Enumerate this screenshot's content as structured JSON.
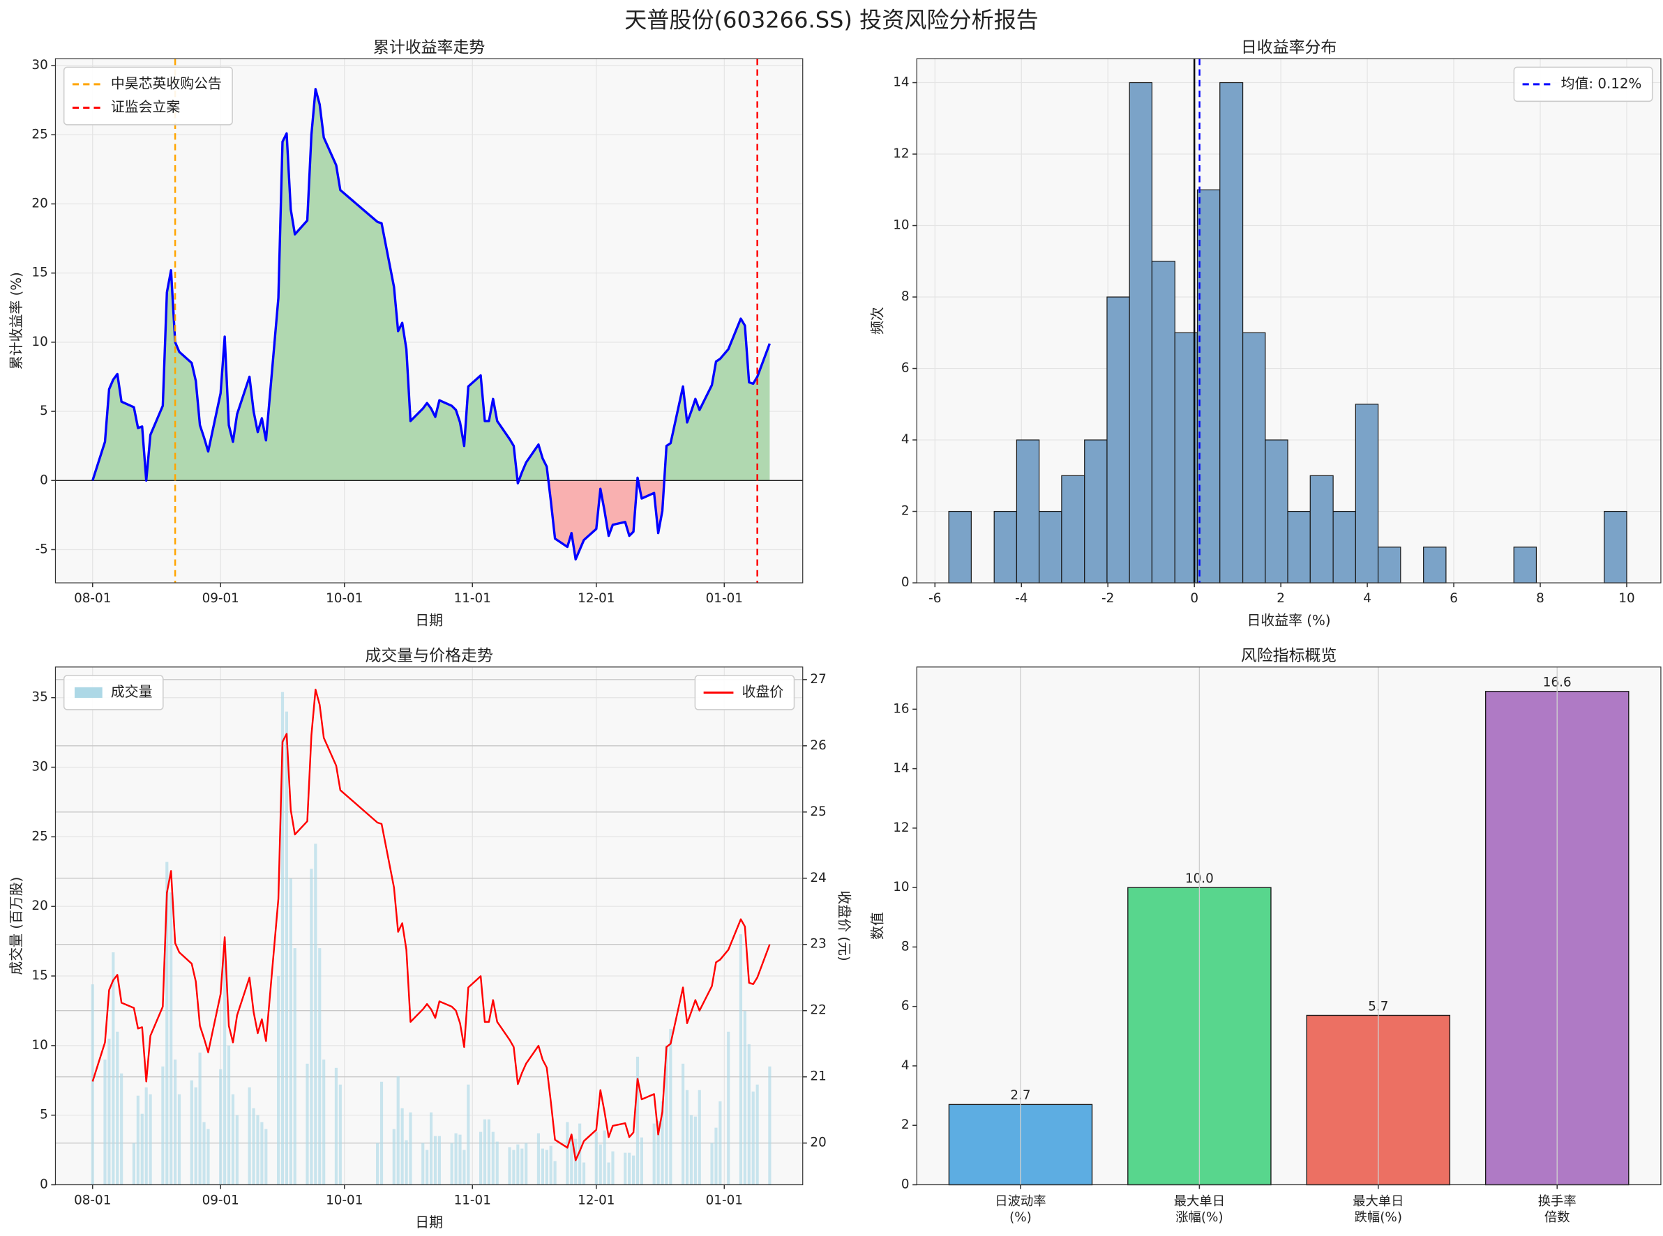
{
  "title": "天普股份(603266.SS) 投资风险分析报告",
  "chart_data": [
    {
      "type": "line",
      "title": "累计收益率走势",
      "xlabel": "日期",
      "ylabel": "累计收益率 (%)",
      "x": [
        "08-01",
        "08-04",
        "08-05",
        "08-06",
        "08-07",
        "08-08",
        "08-11",
        "08-12",
        "08-13",
        "08-14",
        "08-15",
        "08-18",
        "08-19",
        "08-20",
        "08-21",
        "08-22",
        "08-25",
        "08-26",
        "08-27",
        "08-28",
        "08-29",
        "09-01",
        "09-02",
        "09-03",
        "09-04",
        "09-05",
        "09-08",
        "09-09",
        "09-10",
        "09-11",
        "09-12",
        "09-15",
        "09-16",
        "09-17",
        "09-18",
        "09-19",
        "09-22",
        "09-23",
        "09-24",
        "09-25",
        "09-26",
        "09-29",
        "09-30",
        "10-09",
        "10-10",
        "10-13",
        "10-14",
        "10-15",
        "10-16",
        "10-17",
        "10-20",
        "10-21",
        "10-22",
        "10-23",
        "10-24",
        "10-27",
        "10-28",
        "10-29",
        "10-30",
        "10-31",
        "11-03",
        "11-04",
        "11-05",
        "11-06",
        "11-07",
        "11-10",
        "11-11",
        "11-12",
        "11-13",
        "11-14",
        "11-17",
        "11-18",
        "11-19",
        "11-20",
        "11-21",
        "11-24",
        "11-25",
        "11-26",
        "11-27",
        "11-28",
        "12-01",
        "12-02",
        "12-03",
        "12-04",
        "12-05",
        "12-08",
        "12-09",
        "12-10",
        "12-11",
        "12-12",
        "12-15",
        "12-16",
        "12-17",
        "12-18",
        "12-19",
        "12-22",
        "12-23",
        "12-24",
        "12-25",
        "12-26",
        "12-29",
        "12-30",
        "12-31",
        "01-02",
        "01-05",
        "01-06",
        "01-07",
        "01-08",
        "01-09",
        "01-12"
      ],
      "values": [
        0,
        2.8,
        6.6,
        7.3,
        7.7,
        5.7,
        5.3,
        3.8,
        3.9,
        0,
        3.3,
        5.4,
        13.6,
        15.2,
        10.0,
        9.3,
        8.5,
        7.2,
        4.0,
        3.1,
        2.1,
        6.3,
        10.4,
        4.0,
        2.8,
        4.8,
        7.5,
        5.0,
        3.5,
        4.5,
        2.9,
        13.2,
        24.5,
        25.1,
        19.6,
        17.8,
        18.8,
        25.0,
        28.3,
        27.2,
        24.8,
        22.8,
        21.0,
        18.7,
        18.6,
        14.0,
        10.8,
        11.4,
        9.5,
        4.3,
        5.2,
        5.6,
        5.2,
        4.6,
        5.8,
        5.4,
        5.1,
        4.2,
        2.5,
        6.8,
        7.6,
        4.3,
        4.3,
        5.9,
        4.3,
        3.0,
        2.5,
        -0.2,
        0.6,
        1.3,
        2.6,
        1.6,
        1.0,
        -1.5,
        -4.2,
        -4.8,
        -3.8,
        -5.7,
        -5.0,
        -4.3,
        -3.5,
        -0.6,
        -2.2,
        -4.0,
        -3.2,
        -3.0,
        -4.0,
        -3.7,
        0.2,
        -1.3,
        -0.9,
        -3.8,
        -2.2,
        2.5,
        2.7,
        6.8,
        4.2,
        5.0,
        5.9,
        5.1,
        6.9,
        8.6,
        8.8,
        9.5,
        11.7,
        11.2,
        7.1,
        7.0,
        7.5,
        9.9
      ],
      "color": "#0000ff",
      "positive_fill": "#b0d8b0",
      "negative_fill": "#f9b0b0",
      "hlines": [
        0
      ],
      "vlines": [
        {
          "x": "08-21",
          "name": "中昊芯英收购公告",
          "color": "#ffa500",
          "style": "dashed"
        },
        {
          "x": "01-09",
          "name": "证监会立案",
          "color": "#ff0000",
          "style": "dashed"
        }
      ],
      "xlim": [
        "07-23",
        "01-20"
      ],
      "xticks": [
        "08-01",
        "09-01",
        "10-01",
        "11-01",
        "12-01",
        "01-01"
      ],
      "ylim": [
        -7.4,
        30.5
      ],
      "yticks": [
        -5,
        0,
        5,
        10,
        15,
        20,
        25,
        30
      ],
      "grid": true,
      "legend": "upper left"
    },
    {
      "type": "histogram",
      "title": "日收益率分布",
      "xlabel": "日收益率 (%)",
      "ylabel": "频次",
      "bins": [
        -5.68,
        -5.16,
        -4.63,
        -4.11,
        -3.59,
        -3.07,
        -2.54,
        -2.02,
        -1.5,
        -0.98,
        -0.45,
        0.07,
        0.59,
        1.12,
        1.64,
        2.16,
        2.68,
        3.21,
        3.73,
        4.25,
        4.77,
        5.3,
        5.82,
        6.34,
        6.86,
        7.39,
        7.91,
        8.43,
        8.95,
        9.48,
        10.0
      ],
      "counts": [
        2,
        0,
        2,
        4,
        2,
        3,
        4,
        8,
        14,
        9,
        7,
        11,
        14,
        7,
        4,
        2,
        3,
        2,
        5,
        1,
        0,
        1,
        0,
        0,
        0,
        1,
        0,
        0,
        0,
        2
      ],
      "color": "#7ba3c8",
      "edgecolor": "#1a1a1a",
      "vlines": [
        {
          "x": 0,
          "color": "#000000",
          "style": "solid"
        },
        {
          "x": 0.12,
          "name": "均值: 0.12%",
          "color": "#0000ff",
          "style": "dashed"
        }
      ],
      "xlim": [
        -6.42,
        10.79
      ],
      "xticks": [
        -6,
        -4,
        -2,
        0,
        2,
        4,
        6,
        8,
        10
      ],
      "ylim": [
        0,
        14.67
      ],
      "yticks": [
        0,
        2,
        4,
        6,
        8,
        10,
        12,
        14
      ],
      "grid": true,
      "legend": "upper right"
    },
    {
      "type": "combo",
      "title": "成交量与价格走势",
      "xlabel": "日期",
      "ylabel": "成交量 (百万股)",
      "ylabel_color": "#0000ff",
      "y2label": "收盘价 (元)",
      "y2label_color": "#ff0000",
      "x": [
        "08-01",
        "08-04",
        "08-05",
        "08-06",
        "08-07",
        "08-08",
        "08-11",
        "08-12",
        "08-13",
        "08-14",
        "08-15",
        "08-18",
        "08-19",
        "08-20",
        "08-21",
        "08-22",
        "08-25",
        "08-26",
        "08-27",
        "08-28",
        "08-29",
        "09-01",
        "09-02",
        "09-03",
        "09-04",
        "09-05",
        "09-08",
        "09-09",
        "09-10",
        "09-11",
        "09-12",
        "09-15",
        "09-16",
        "09-17",
        "09-18",
        "09-19",
        "09-22",
        "09-23",
        "09-24",
        "09-25",
        "09-26",
        "09-29",
        "09-30",
        "10-09",
        "10-10",
        "10-13",
        "10-14",
        "10-15",
        "10-16",
        "10-17",
        "10-20",
        "10-21",
        "10-22",
        "10-23",
        "10-24",
        "10-27",
        "10-28",
        "10-29",
        "10-30",
        "10-31",
        "11-03",
        "11-04",
        "11-05",
        "11-06",
        "11-07",
        "11-10",
        "11-11",
        "11-12",
        "11-13",
        "11-14",
        "11-17",
        "11-18",
        "11-19",
        "11-20",
        "11-21",
        "11-24",
        "11-25",
        "11-26",
        "11-27",
        "11-28",
        "12-01",
        "12-02",
        "12-03",
        "12-04",
        "12-05",
        "12-08",
        "12-09",
        "12-10",
        "12-11",
        "12-12",
        "12-15",
        "12-16",
        "12-17",
        "12-18",
        "12-19",
        "12-22",
        "12-23",
        "12-24",
        "12-25",
        "12-26",
        "12-29",
        "12-30",
        "12-31",
        "01-02",
        "01-05",
        "01-06",
        "01-07",
        "01-08",
        "01-09",
        "01-12"
      ],
      "series": [
        {
          "name": "成交量",
          "kind": "bar",
          "color": "#add8e6",
          "legend": "upper left",
          "values": [
            14.4,
            9.0,
            10.5,
            16.7,
            11.0,
            8.0,
            3.0,
            6.4,
            5.1,
            7.0,
            6.5,
            8.5,
            23.2,
            21.0,
            9.0,
            6.5,
            7.5,
            7.0,
            9.5,
            4.5,
            4.0,
            8.3,
            17.5,
            10.0,
            6.5,
            5.0,
            7.0,
            5.5,
            5.0,
            4.5,
            4.0,
            15.0,
            35.4,
            34.0,
            22.0,
            17.0,
            8.7,
            22.7,
            24.5,
            17.0,
            9.0,
            8.4,
            7.2,
            3.0,
            7.4,
            4.0,
            7.8,
            5.5,
            3.2,
            5.2,
            3.0,
            2.5,
            5.2,
            3.5,
            3.5,
            3.0,
            3.7,
            3.6,
            2.5,
            7.2,
            3.8,
            4.7,
            4.7,
            3.8,
            3.1,
            2.7,
            2.5,
            2.9,
            2.6,
            3.0,
            3.7,
            2.6,
            2.5,
            2.8,
            1.7,
            4.5,
            3.6,
            3.3,
            4.4,
            1.6,
            3.8,
            2.9,
            3.9,
            1.6,
            2.4,
            2.3,
            2.3,
            2.1,
            9.2,
            3.4,
            4.4,
            4.6,
            6.0,
            10.0,
            11.2,
            8.7,
            6.8,
            5.0,
            4.9,
            6.8,
            3.0,
            4.1,
            6.0,
            11.0,
            18.0,
            12.5,
            10.1,
            6.7,
            7.2,
            8.5
          ]
        },
        {
          "name": "收盘价",
          "kind": "line",
          "color": "#ff0000",
          "axis": "y2",
          "legend": "upper right",
          "values": [
            20.93,
            21.52,
            22.31,
            22.46,
            22.54,
            22.12,
            22.04,
            21.73,
            21.75,
            20.93,
            21.62,
            22.06,
            23.78,
            24.11,
            23.02,
            22.88,
            22.71,
            22.44,
            21.77,
            21.58,
            21.37,
            22.25,
            23.11,
            21.77,
            21.52,
            21.93,
            22.5,
            21.98,
            21.66,
            21.87,
            21.54,
            23.69,
            26.06,
            26.18,
            25.03,
            24.66,
            24.86,
            26.16,
            26.85,
            26.62,
            26.12,
            25.7,
            25.33,
            24.84,
            24.82,
            23.86,
            23.19,
            23.32,
            22.92,
            21.83,
            22.02,
            22.1,
            22.02,
            21.89,
            22.14,
            22.06,
            22.0,
            21.81,
            21.45,
            22.35,
            22.52,
            21.83,
            21.83,
            22.16,
            21.83,
            21.56,
            21.45,
            20.89,
            21.06,
            21.2,
            21.47,
            21.26,
            21.14,
            20.62,
            20.05,
            19.93,
            20.13,
            19.74,
            19.88,
            20.03,
            20.2,
            20.8,
            20.47,
            20.09,
            20.26,
            20.3,
            20.09,
            20.16,
            20.97,
            20.66,
            20.74,
            20.13,
            20.47,
            21.45,
            21.5,
            22.35,
            21.81,
            21.98,
            22.16,
            22.0,
            22.37,
            22.73,
            22.77,
            22.92,
            23.38,
            23.27,
            22.42,
            22.4,
            22.5,
            23.0
          ]
        }
      ],
      "xlim": [
        "07-23",
        "01-20"
      ],
      "xticks": [
        "08-01",
        "09-01",
        "10-01",
        "11-01",
        "12-01",
        "01-01"
      ],
      "ylim": [
        0,
        37.2
      ],
      "yticks": [
        0,
        5,
        10,
        15,
        20,
        25,
        30,
        35
      ],
      "y2lim": [
        19.37,
        27.19
      ],
      "y2ticks": [
        20,
        21,
        22,
        23,
        24,
        25,
        26,
        27
      ],
      "grid": true
    },
    {
      "type": "bar",
      "title": "风险指标概览",
      "ylabel": "数值",
      "categories": [
        "日波动率\n(%)",
        "最大单日\n涨幅(%)",
        "最大单日\n跌幅(%)",
        "换手率\n倍数"
      ],
      "values": [
        2.7,
        10.0,
        5.7,
        16.6
      ],
      "value_labels": [
        "2.7",
        "10.0",
        "5.7",
        "16.6"
      ],
      "colors": [
        "#5dade2",
        "#58d68d",
        "#ec7063",
        "#af7ac5"
      ],
      "edgecolor": "#1a1a1a",
      "ylim": [
        0,
        17.42
      ],
      "yticks": [
        0,
        2,
        4,
        6,
        8,
        10,
        12,
        14,
        16
      ],
      "grid": "x"
    }
  ]
}
